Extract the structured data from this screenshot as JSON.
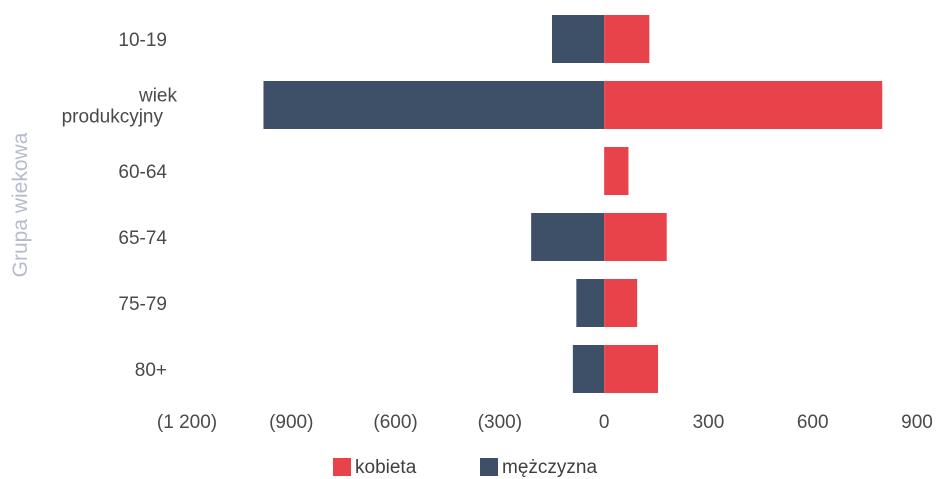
{
  "chart_data": {
    "type": "bar",
    "orientation": "horizontal",
    "stacked": true,
    "categories": [
      "10-19",
      "wiek\nprodukcyjny",
      "60-64",
      "65-74",
      "75-79",
      "80+"
    ],
    "series": [
      {
        "name": "mężczyzna",
        "values": [
          -150,
          -980,
          0,
          -210,
          -80,
          -90
        ],
        "color": "#3d5068"
      },
      {
        "name": "kobieta",
        "values": [
          130,
          800,
          70,
          180,
          95,
          155
        ],
        "color": "#e8434b"
      }
    ],
    "xlim": [
      -1200,
      900
    ],
    "xticks": [
      -1200,
      -900,
      -600,
      -300,
      0,
      300,
      600,
      900
    ],
    "xtick_labels": [
      "(1 200)",
      "(900)",
      "(600)",
      "(300)",
      "0",
      "300",
      "600",
      "900"
    ],
    "ylabel": "Grupa wiekowa",
    "xlabel": "",
    "title": "",
    "grid": false,
    "legend": {
      "placement": "bottom",
      "entries": [
        "kobieta",
        "mężczyzna"
      ]
    }
  }
}
